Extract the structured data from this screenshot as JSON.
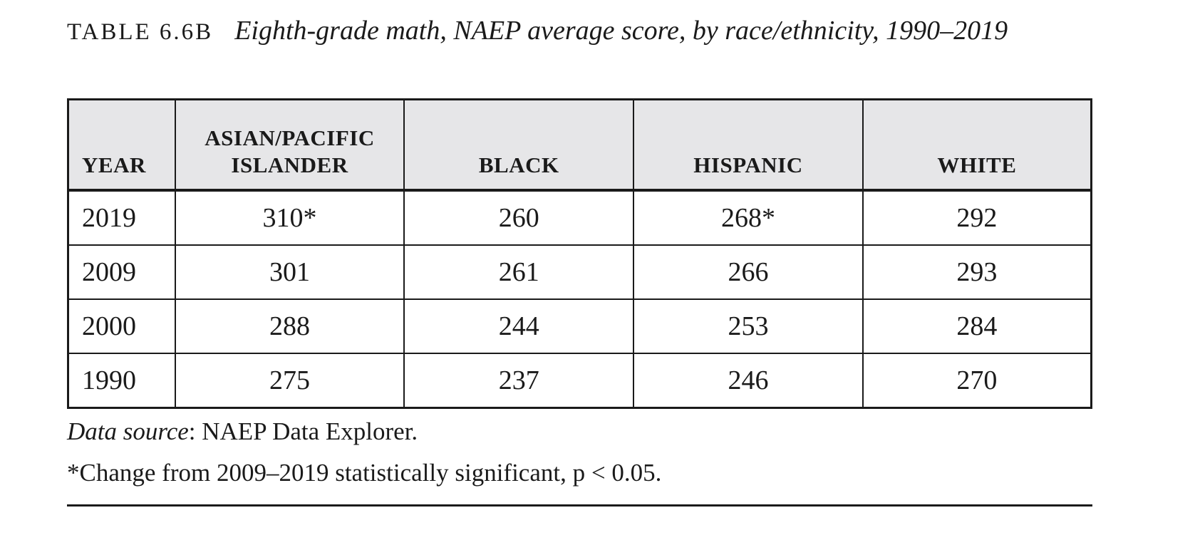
{
  "caption": {
    "label": "TABLE 6.6B",
    "title": "Eighth-grade math, NAEP average score, by race/ethnicity, 1990–2019"
  },
  "table": {
    "headers": {
      "year": "YEAR",
      "asian_line1": "ASIAN/PACIFIC",
      "asian_line2": "ISLANDER",
      "black": "BLACK",
      "hispanic": "HISPANIC",
      "white": "WHITE"
    },
    "rows": [
      {
        "year": "2019",
        "asian": "310*",
        "black": "260",
        "hispanic": "268*",
        "white": "292"
      },
      {
        "year": "2009",
        "asian": "301",
        "black": "261",
        "hispanic": "266",
        "white": "293"
      },
      {
        "year": "2000",
        "asian": "288",
        "black": "244",
        "hispanic": "253",
        "white": "284"
      },
      {
        "year": "1990",
        "asian": "275",
        "black": "237",
        "hispanic": "246",
        "white": "270"
      }
    ]
  },
  "notes": {
    "source_label": "Data source",
    "source_text": ": NAEP Data Explorer.",
    "footnote": "*Change from 2009–2019 statistically significant, p < 0.05."
  }
}
